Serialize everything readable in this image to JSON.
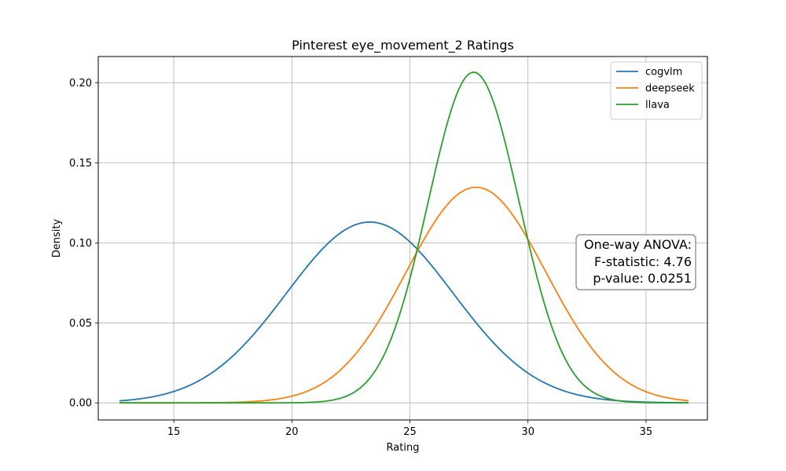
{
  "chart_data": {
    "type": "line",
    "title": "Pinterest eye_movement_2 Ratings",
    "xlabel": "Rating",
    "ylabel": "Density",
    "xlim": [
      11.8,
      37.6
    ],
    "ylim": [
      -0.0107,
      0.2165
    ],
    "x_ticks": [
      15,
      20,
      25,
      30,
      35
    ],
    "y_ticks": [
      0.0,
      0.05,
      0.1,
      0.15,
      0.2
    ],
    "y_tick_labels": [
      "0.00",
      "0.05",
      "0.10",
      "0.15",
      "0.20"
    ],
    "grid": true,
    "legend_position": "top-right",
    "x_range": [
      12.7,
      36.8
    ],
    "series": [
      {
        "name": "cogvlm",
        "color": "#1f77b4",
        "mean": 23.3,
        "sd": 3.53
      },
      {
        "name": "deepseek",
        "color": "#ff7f0e",
        "mean": 27.8,
        "sd": 2.96
      },
      {
        "name": "llava",
        "color": "#2ca02c",
        "mean": 27.7,
        "sd": 1.93
      }
    ],
    "annotation": {
      "lines": [
        "One-way ANOVA:",
        "F-statistic: 4.76",
        "p-value: 0.0251"
      ]
    }
  }
}
